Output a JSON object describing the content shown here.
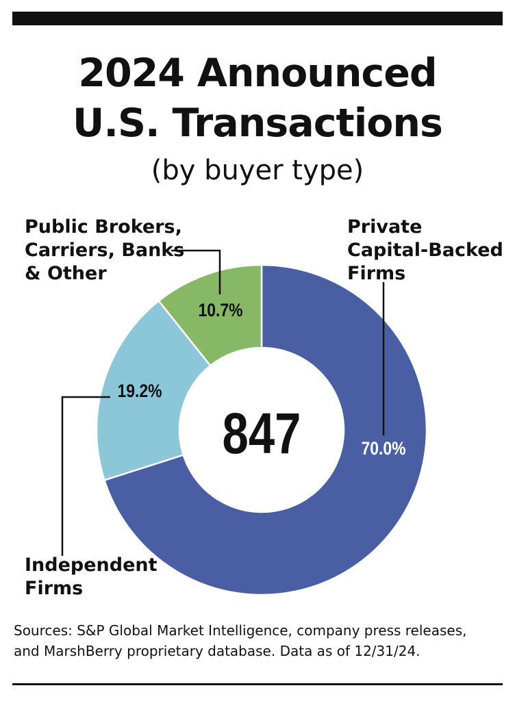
{
  "title_line1": "2024 Announced",
  "title_line2": "U.S. Transactions",
  "subtitle": "(by buyer type)",
  "labels": {
    "public_line1": "Public Brokers,",
    "public_line2": "Carriers, Banks",
    "public_line3": "& Other",
    "private_line1": "Private",
    "private_line2": "Capital-Backed",
    "private_line3": "Firms",
    "independent_line1": "Independent",
    "independent_line2": "Firms"
  },
  "sources_line1": "Sources: S&P Global Market Intelligence, company press releases,",
  "sources_line2": "and MarshBerry proprietary database. Data as of 12/31/24.",
  "chart_data": {
    "type": "pie",
    "variant": "donut",
    "title": "2024 Announced U.S. Transactions",
    "subtitle": "(by buyer type)",
    "center_label": "847",
    "slices": [
      {
        "name": "Private Capital-Backed Firms",
        "value": 70.0,
        "label": "70.0%",
        "color": "#4a5ea4"
      },
      {
        "name": "Independent Firms",
        "value": 19.2,
        "label": "19.2%",
        "color": "#8cc6d9"
      },
      {
        "name": "Public Brokers, Carriers, Banks & Other",
        "value": 10.7,
        "label": "10.7%",
        "color": "#87b866"
      }
    ]
  }
}
